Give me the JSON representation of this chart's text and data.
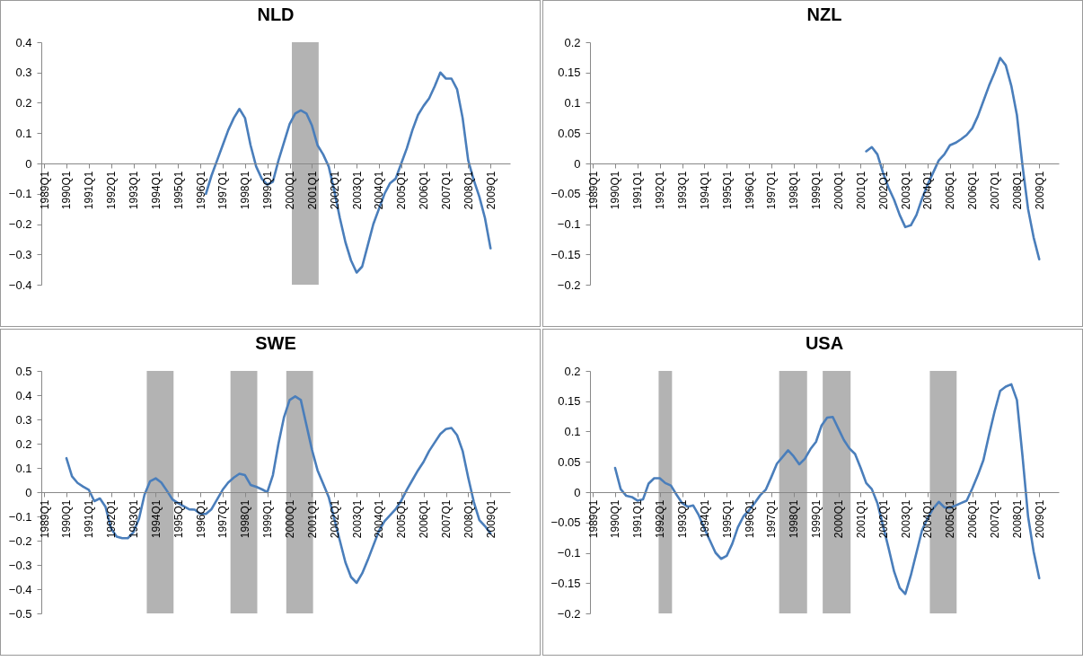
{
  "chart_data": [
    {
      "type": "line",
      "title": "NLD",
      "ylim": [
        -0.4,
        0.4
      ],
      "yticks": [
        -0.4,
        -0.3,
        -0.2,
        -0.1,
        0,
        0.1,
        0.2,
        0.3,
        0.4
      ],
      "categories": [
        "1989Q1",
        null,
        null,
        null,
        "1990Q1",
        null,
        null,
        null,
        "1991Q1",
        null,
        null,
        null,
        "1992Q1",
        null,
        null,
        null,
        "1993Q1",
        null,
        null,
        null,
        "1994Q1",
        null,
        null,
        null,
        "1995Q1",
        null,
        null,
        null,
        "1996Q1",
        null,
        null,
        null,
        "1997Q1",
        null,
        null,
        null,
        "1998Q1",
        null,
        null,
        null,
        "1999Q1",
        null,
        null,
        null,
        "2000Q1",
        null,
        null,
        null,
        "2001Q1",
        null,
        null,
        null,
        "2002Q1",
        null,
        null,
        null,
        "2003Q1",
        null,
        null,
        null,
        "2004Q1",
        null,
        null,
        null,
        "2005Q1",
        null,
        null,
        null,
        "2006Q1",
        null,
        null,
        null,
        "2007Q1",
        null,
        null,
        null,
        "2008Q1",
        null,
        null,
        null,
        "2009Q1",
        null,
        null,
        null
      ],
      "series": [
        {
          "color": "#4a7ebb",
          "values": [
            null,
            null,
            null,
            null,
            null,
            null,
            null,
            null,
            null,
            null,
            null,
            null,
            null,
            null,
            null,
            null,
            null,
            null,
            null,
            null,
            null,
            null,
            null,
            null,
            null,
            null,
            null,
            null,
            null,
            -0.1,
            -0.04,
            0.01,
            0.06,
            0.11,
            0.15,
            0.18,
            0.15,
            0.06,
            -0.01,
            -0.05,
            -0.07,
            -0.06,
            0.01,
            0.07,
            0.13,
            0.165,
            0.175,
            0.165,
            0.125,
            0.06,
            0.03,
            -0.01,
            -0.09,
            -0.18,
            -0.26,
            -0.32,
            -0.36,
            -0.34,
            -0.27,
            -0.2,
            -0.15,
            -0.1,
            -0.065,
            -0.05,
            0.0,
            0.05,
            0.11,
            0.16,
            0.19,
            0.215,
            0.255,
            0.3,
            0.28,
            0.28,
            0.245,
            0.15,
            0.01,
            -0.055,
            -0.11,
            -0.18,
            -0.28,
            null,
            null,
            null
          ]
        }
      ]
    },
    {
      "type": "line",
      "title": "NZL",
      "ylim": [
        -0.2,
        0.2
      ],
      "yticks": [
        -0.2,
        -0.15,
        -0.1,
        -0.05,
        0,
        0.05,
        0.1,
        0.15,
        0.2
      ],
      "categories": [
        "1989Q1",
        null,
        null,
        null,
        "1990Q1",
        null,
        null,
        null,
        "1991Q1",
        null,
        null,
        null,
        "1992Q1",
        null,
        null,
        null,
        "1993Q1",
        null,
        null,
        null,
        "1994Q1",
        null,
        null,
        null,
        "1995Q1",
        null,
        null,
        null,
        "1996Q1",
        null,
        null,
        null,
        "1997Q1",
        null,
        null,
        null,
        "1998Q1",
        null,
        null,
        null,
        "1999Q1",
        null,
        null,
        null,
        "2000Q1",
        null,
        null,
        null,
        "2001Q1",
        null,
        null,
        null,
        "2002Q1",
        null,
        null,
        null,
        "2003Q1",
        null,
        null,
        null,
        "2004Q1",
        null,
        null,
        null,
        "2005Q1",
        null,
        null,
        null,
        "2006Q1",
        null,
        null,
        null,
        "2007Q1",
        null,
        null,
        null,
        "2008Q1",
        null,
        null,
        null,
        "2009Q1",
        null,
        null,
        null
      ],
      "series": [
        {
          "color": "#4a7ebb",
          "values": [
            null,
            null,
            null,
            null,
            null,
            null,
            null,
            null,
            null,
            null,
            null,
            null,
            null,
            null,
            null,
            null,
            null,
            null,
            null,
            null,
            null,
            null,
            null,
            null,
            null,
            null,
            null,
            null,
            null,
            null,
            null,
            null,
            null,
            null,
            null,
            null,
            null,
            null,
            null,
            null,
            null,
            null,
            null,
            null,
            null,
            null,
            null,
            null,
            null,
            0.02,
            0.027,
            0.015,
            -0.015,
            -0.04,
            -0.06,
            -0.085,
            -0.105,
            -0.102,
            -0.085,
            -0.058,
            -0.035,
            -0.015,
            0.005,
            0.015,
            0.03,
            0.034,
            0.04,
            0.047,
            0.058,
            0.078,
            0.103,
            0.128,
            0.15,
            0.174,
            0.162,
            0.128,
            0.08,
            -0.003,
            -0.075,
            -0.122,
            -0.158,
            null,
            null,
            null
          ]
        }
      ]
    },
    {
      "type": "line",
      "title": "SWE",
      "ylim": [
        -0.5,
        0.5
      ],
      "yticks": [
        -0.5,
        -0.4,
        -0.3,
        -0.2,
        -0.1,
        0,
        0.1,
        0.2,
        0.3,
        0.4,
        0.5
      ],
      "categories": [
        "1989Q1",
        null,
        null,
        null,
        "1990Q1",
        null,
        null,
        null,
        "1991Q1",
        null,
        null,
        null,
        "1992Q1",
        null,
        null,
        null,
        "1993Q1",
        null,
        null,
        null,
        "1994Q1",
        null,
        null,
        null,
        "1995Q1",
        null,
        null,
        null,
        "1996Q1",
        null,
        null,
        null,
        "1997Q1",
        null,
        null,
        null,
        "1998Q1",
        null,
        null,
        null,
        "1999Q1",
        null,
        null,
        null,
        "2000Q1",
        null,
        null,
        null,
        "2001Q1",
        null,
        null,
        null,
        "2002Q1",
        null,
        null,
        null,
        "2003Q1",
        null,
        null,
        null,
        "2004Q1",
        null,
        null,
        null,
        "2005Q1",
        null,
        null,
        null,
        "2006Q1",
        null,
        null,
        null,
        "2007Q1",
        null,
        null,
        null,
        "2008Q1",
        null,
        null,
        null,
        "2009Q1",
        null,
        null,
        null
      ],
      "series": [
        {
          "color": "#4a7ebb",
          "values": [
            null,
            null,
            null,
            null,
            0.14,
            0.065,
            0.038,
            0.023,
            0.01,
            -0.037,
            -0.026,
            -0.06,
            -0.15,
            -0.183,
            -0.19,
            -0.19,
            -0.165,
            -0.11,
            -0.01,
            0.045,
            0.057,
            0.04,
            0.006,
            -0.03,
            -0.045,
            -0.058,
            -0.071,
            -0.072,
            -0.09,
            -0.09,
            -0.07,
            -0.03,
            0.01,
            0.04,
            0.06,
            0.076,
            0.07,
            0.03,
            0.022,
            0.012,
            0.0,
            0.07,
            0.2,
            0.31,
            0.38,
            0.395,
            0.38,
            0.278,
            0.175,
            0.09,
            0.035,
            -0.02,
            -0.11,
            -0.2,
            -0.29,
            -0.35,
            -0.374,
            -0.335,
            -0.28,
            -0.22,
            -0.16,
            -0.12,
            -0.095,
            -0.07,
            -0.035,
            0.01,
            0.05,
            0.09,
            0.125,
            0.17,
            0.205,
            0.24,
            0.26,
            0.265,
            0.235,
            0.17,
            0.06,
            -0.04,
            -0.115,
            -0.14,
            -0.17,
            null,
            null,
            null
          ]
        }
      ]
    },
    {
      "type": "line",
      "title": "USA",
      "ylim": [
        -0.2,
        0.2
      ],
      "yticks": [
        -0.2,
        -0.15,
        -0.1,
        -0.05,
        0,
        0.05,
        0.1,
        0.15,
        0.2
      ],
      "categories": [
        "1989Q1",
        null,
        null,
        null,
        "1990Q1",
        null,
        null,
        null,
        "1991Q1",
        null,
        null,
        null,
        "1992Q1",
        null,
        null,
        null,
        "1993Q1",
        null,
        null,
        null,
        "1994Q1",
        null,
        null,
        null,
        "1995Q1",
        null,
        null,
        null,
        "1996Q1",
        null,
        null,
        null,
        "1997Q1",
        null,
        null,
        null,
        "1998Q1",
        null,
        null,
        null,
        "1999Q1",
        null,
        null,
        null,
        "2000Q1",
        null,
        null,
        null,
        "2001Q1",
        null,
        null,
        null,
        "2002Q1",
        null,
        null,
        null,
        "2003Q1",
        null,
        null,
        null,
        "2004Q1",
        null,
        null,
        null,
        "2005Q1",
        null,
        null,
        null,
        "2006Q1",
        null,
        null,
        null,
        "2007Q1",
        null,
        null,
        null,
        "2008Q1",
        null,
        null,
        null,
        "2009Q1",
        null,
        null,
        null
      ],
      "series": [
        {
          "color": "#4a7ebb",
          "values": [
            null,
            null,
            null,
            null,
            0.04,
            0.005,
            -0.006,
            -0.008,
            -0.014,
            -0.012,
            0.014,
            0.023,
            0.023,
            0.015,
            0.011,
            -0.004,
            -0.018,
            -0.024,
            -0.022,
            -0.038,
            -0.06,
            -0.08,
            -0.1,
            -0.11,
            -0.105,
            -0.085,
            -0.058,
            -0.04,
            -0.03,
            -0.018,
            -0.005,
            0.004,
            0.025,
            0.047,
            0.058,
            0.069,
            0.059,
            0.046,
            0.055,
            0.071,
            0.083,
            0.11,
            0.123,
            0.124,
            0.105,
            0.086,
            0.072,
            0.063,
            0.04,
            0.015,
            0.005,
            -0.018,
            -0.055,
            -0.092,
            -0.131,
            -0.158,
            -0.168,
            -0.137,
            -0.1,
            -0.063,
            -0.043,
            -0.027,
            -0.016,
            -0.025,
            -0.026,
            -0.022,
            -0.018,
            -0.014,
            0.006,
            0.028,
            0.053,
            0.094,
            0.133,
            0.167,
            0.174,
            0.178,
            0.152,
            0.06,
            -0.04,
            -0.098,
            -0.142,
            null,
            null,
            null
          ]
        }
      ]
    }
  ]
}
